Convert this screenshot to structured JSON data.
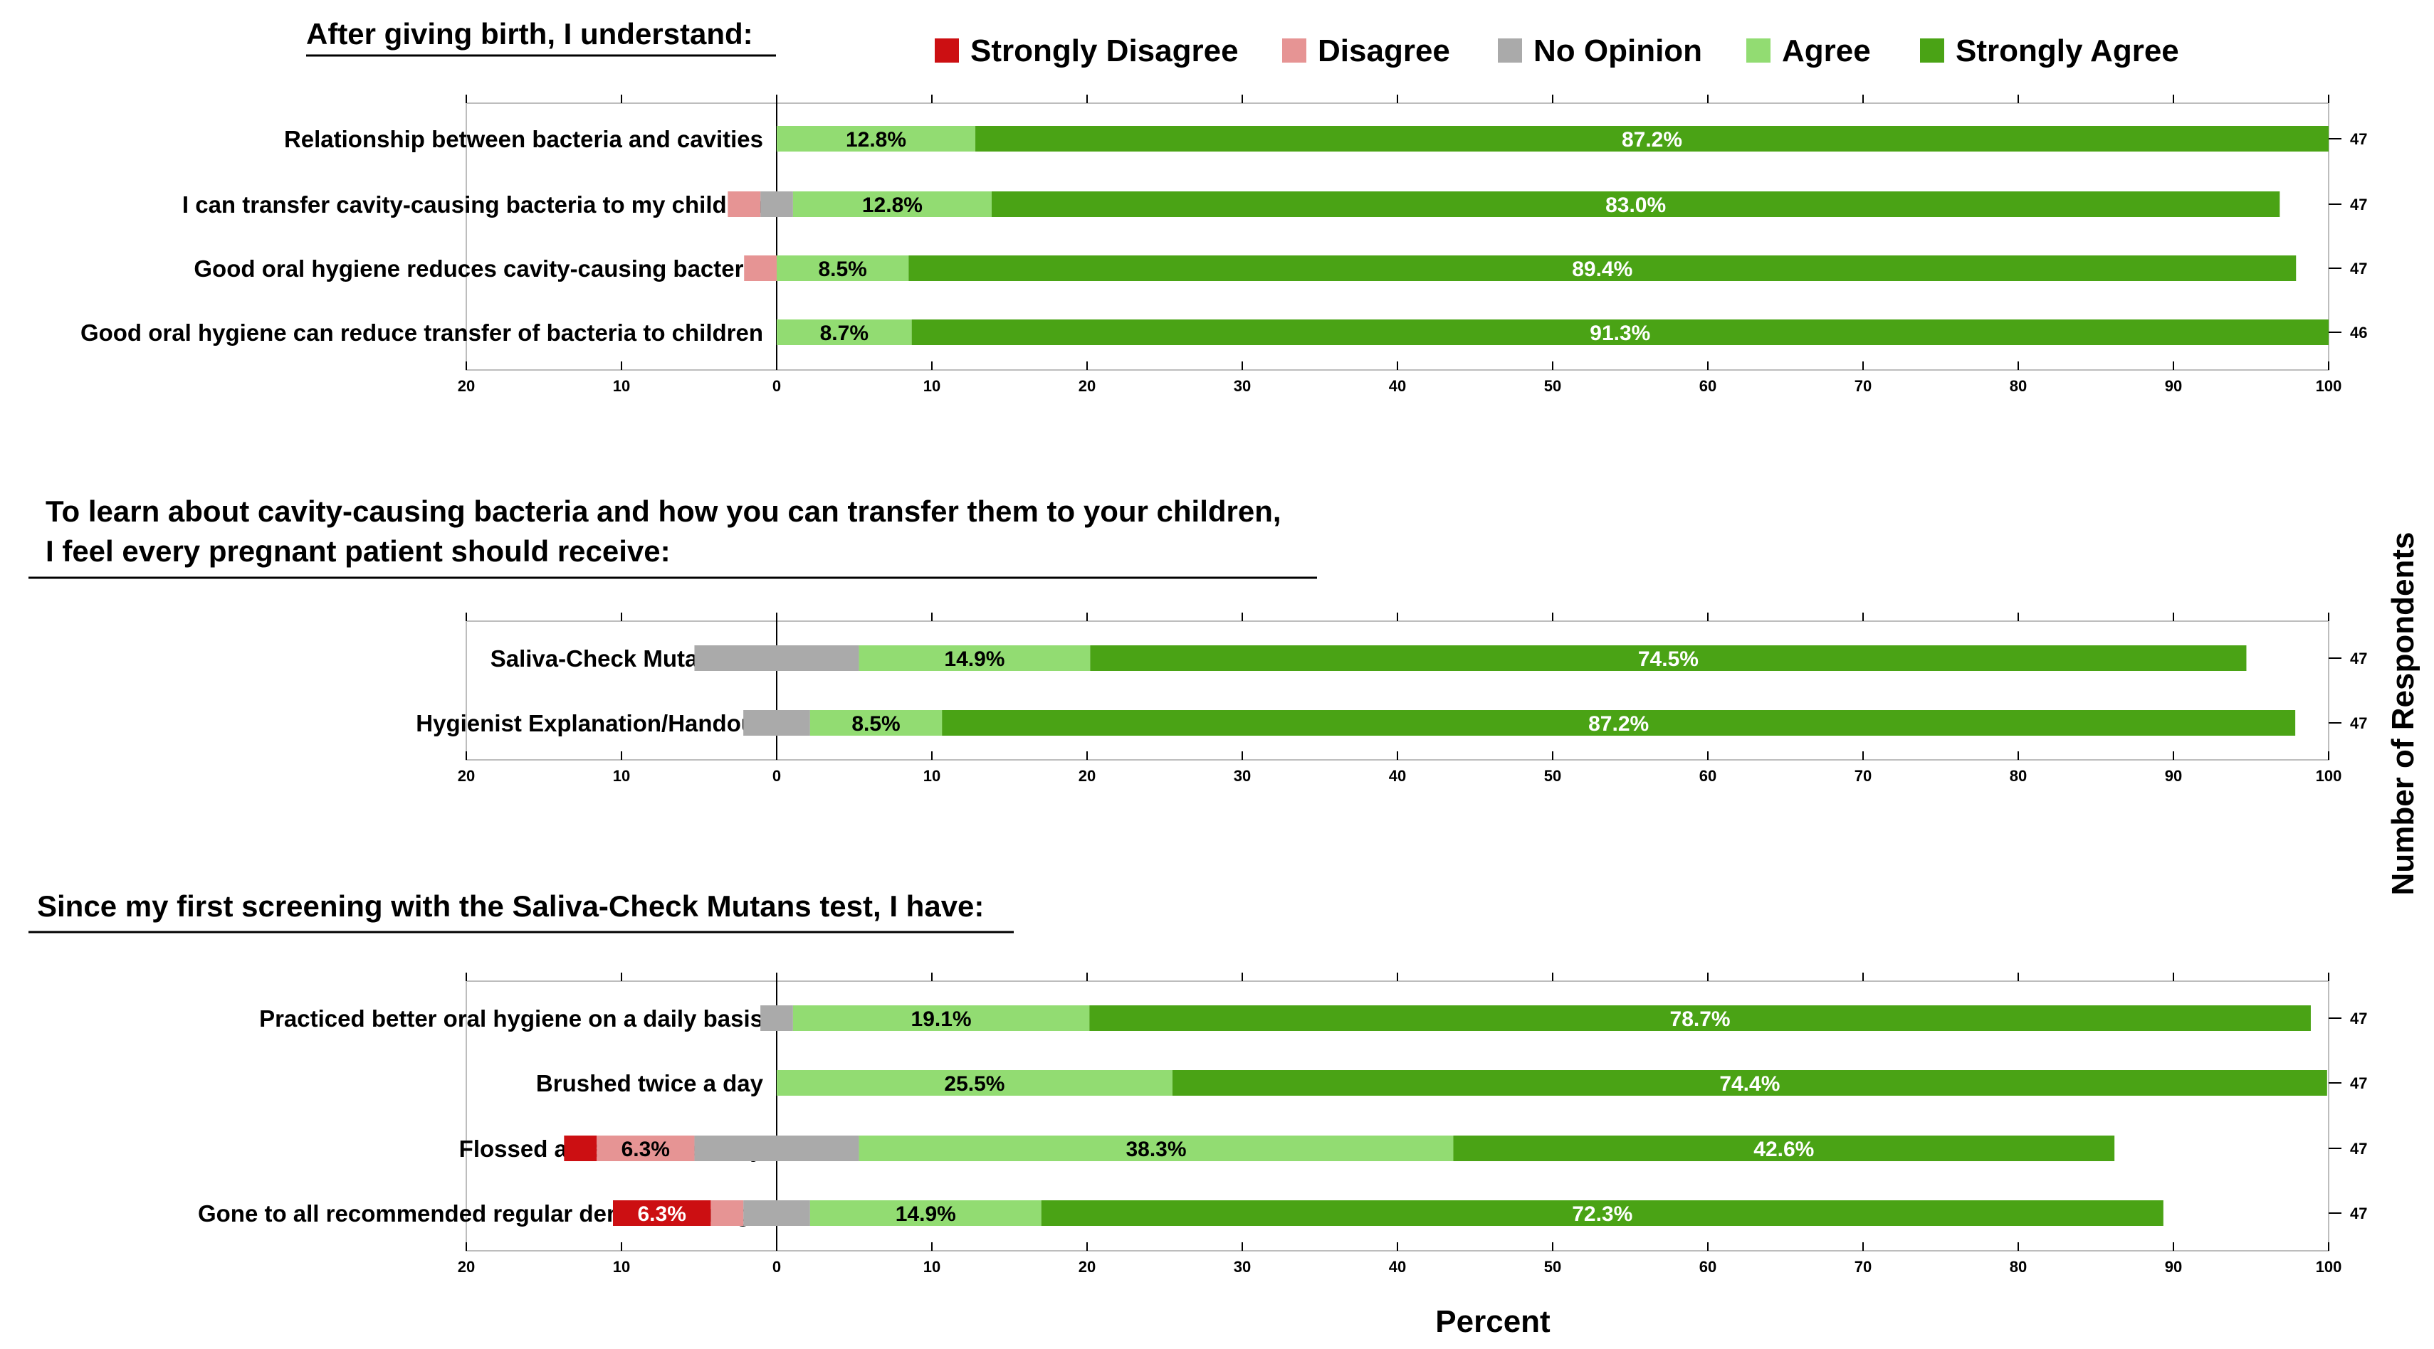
{
  "chart_data": {
    "type": "bar",
    "subtype": "diverging-stacked-horizontal",
    "xlabel": "Percent",
    "right_axis_label": "Number of Respondents",
    "xlim": [
      -20,
      100
    ],
    "xticks": [
      "20",
      "10",
      "0",
      "10",
      "20",
      "30",
      "40",
      "50",
      "60",
      "70",
      "80",
      "90",
      "100"
    ],
    "legend": {
      "position": "top",
      "entries": [
        {
          "name": "Strongly Disagree",
          "color": "#cc0f12"
        },
        {
          "name": "Disagree",
          "color": "#e69494"
        },
        {
          "name": "No Opinion",
          "color": "#aaaaaa"
        },
        {
          "name": "Agree",
          "color": "#92dc72"
        },
        {
          "name": "Strongly Agree",
          "color": "#4aa315"
        }
      ]
    },
    "panels": [
      {
        "title_lines": [
          "After giving birth, I understand:"
        ],
        "rows": [
          {
            "label": "Relationship between bacteria and cavities",
            "n": "47",
            "values": {
              "strongly_disagree": 0,
              "disagree": 0,
              "no_opinion": 0,
              "agree": 12.8,
              "strongly_agree": 87.2
            },
            "data_labels": {
              "agree": "12.8%",
              "strongly_agree": "87.2%"
            }
          },
          {
            "label": "I can transfer cavity-causing bacteria to my children",
            "n": "47",
            "values": {
              "strongly_disagree": 0,
              "disagree": 2.1,
              "no_opinion": 2.1,
              "agree": 12.8,
              "strongly_agree": 83.0
            },
            "data_labels": {
              "agree": "12.8%",
              "strongly_agree": "83.0%"
            }
          },
          {
            "label": "Good oral hygiene reduces cavity-causing bacteria",
            "n": "47",
            "values": {
              "strongly_disagree": 0,
              "disagree": 2.1,
              "no_opinion": 0,
              "agree": 8.5,
              "strongly_agree": 89.4
            },
            "data_labels": {
              "agree": "8.5%",
              "strongly_agree": "89.4%"
            }
          },
          {
            "label": "Good oral hygiene can reduce transfer of bacteria to children",
            "n": "46",
            "values": {
              "strongly_disagree": 0,
              "disagree": 0,
              "no_opinion": 0,
              "agree": 8.7,
              "strongly_agree": 91.3
            },
            "data_labels": {
              "agree": "8.7%",
              "strongly_agree": "91.3%"
            }
          }
        ]
      },
      {
        "title_lines": [
          "To learn about cavity-causing bacteria and how you can transfer them to your children,",
          "I feel every pregnant patient should receive:"
        ],
        "rows": [
          {
            "label": "Saliva-Check Mutans Kit",
            "n": "47",
            "values": {
              "strongly_disagree": 0,
              "disagree": 0,
              "no_opinion": 10.6,
              "agree": 14.9,
              "strongly_agree": 74.5
            },
            "data_labels": {
              "agree": "14.9%",
              "strongly_agree": "74.5%"
            }
          },
          {
            "label": "Hygienist Explanation/Handout",
            "n": "47",
            "values": {
              "strongly_disagree": 0,
              "disagree": 0,
              "no_opinion": 4.3,
              "agree": 8.5,
              "strongly_agree": 87.2
            },
            "data_labels": {
              "agree": "8.5%",
              "strongly_agree": "87.2%"
            }
          }
        ]
      },
      {
        "title_lines": [
          "Since my first screening with the Saliva-Check Mutans test, I have:"
        ],
        "rows": [
          {
            "label": "Practiced better oral hygiene on a daily basis",
            "n": "47",
            "values": {
              "strongly_disagree": 0,
              "disagree": 0,
              "no_opinion": 2.1,
              "agree": 19.1,
              "strongly_agree": 78.7
            },
            "data_labels": {
              "agree": "19.1%",
              "strongly_agree": "78.7%"
            }
          },
          {
            "label": "Brushed twice a day",
            "n": "47",
            "values": {
              "strongly_disagree": 0,
              "disagree": 0,
              "no_opinion": 0,
              "agree": 25.5,
              "strongly_agree": 74.4
            },
            "data_labels": {
              "agree": "25.5%",
              "strongly_agree": "74.4%"
            }
          },
          {
            "label": "Flossed at least once a day",
            "n": "47",
            "values": {
              "strongly_disagree": 2.1,
              "disagree": 6.3,
              "no_opinion": 10.6,
              "agree": 38.3,
              "strongly_agree": 42.6
            },
            "data_labels": {
              "disagree": "6.3%",
              "agree": "38.3%",
              "strongly_agree": "42.6%"
            }
          },
          {
            "label": "Gone to all recommended regular dental cleanings",
            "n": "47",
            "values": {
              "strongly_disagree": 6.3,
              "disagree": 2.1,
              "no_opinion": 4.3,
              "agree": 14.9,
              "strongly_agree": 72.3
            },
            "data_labels": {
              "strongly_disagree": "6.3%",
              "agree": "14.9%",
              "strongly_agree": "72.3%"
            }
          }
        ]
      }
    ]
  }
}
